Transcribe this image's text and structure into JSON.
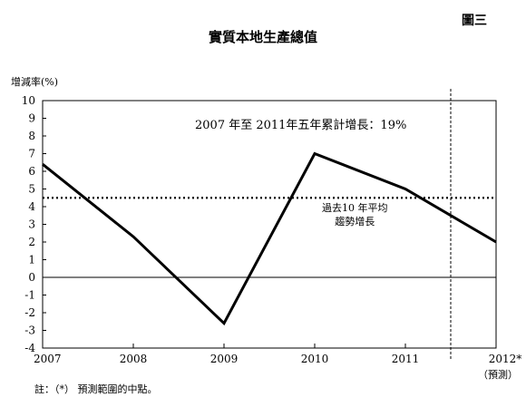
{
  "figure_label": "圖三",
  "footnote": "註：（*）  預測範圍的中點。",
  "chart_data": {
    "type": "line",
    "title": "實質本地生產總值",
    "ylabel": "增減率(%)",
    "xlabel": "",
    "ylim": [
      -4,
      10
    ],
    "yticks": [
      "10",
      "9",
      "8",
      "7",
      "6",
      "5",
      "4",
      "3",
      "2",
      "1",
      "0",
      "-1",
      "-2",
      "-3",
      "-4"
    ],
    "x_ticks": [
      "2007",
      "2008",
      "2009",
      "2010",
      "2011",
      "2012*"
    ],
    "x_forecast_note": "（預測）",
    "series": [
      {
        "x": [
          2007,
          2008,
          2009,
          2010,
          2011,
          2012
        ],
        "values": [
          6.4,
          2.3,
          -2.6,
          7.0,
          5.0,
          2.0
        ]
      }
    ],
    "reference_line": {
      "value": 4.5,
      "style": "dotted",
      "label_line1": "過去10  年平均",
      "label_line2": "趨勢增長"
    },
    "forecast_divider": {
      "x": 2011.5,
      "style": "dashed"
    },
    "annotation": "2007 年至 2011年五年累計增長：19%",
    "grid": false,
    "legend": "none"
  }
}
